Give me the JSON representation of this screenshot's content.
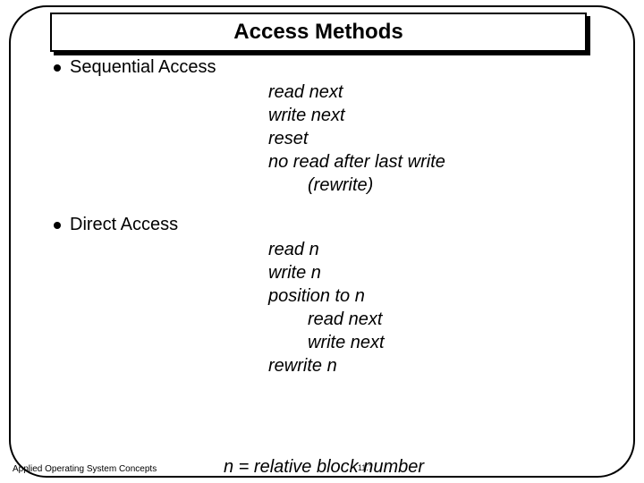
{
  "title": "Access Methods",
  "sections": [
    {
      "label": "Sequential Access",
      "ops": [
        {
          "text": "read next",
          "indent": 0
        },
        {
          "text": "write next",
          "indent": 0
        },
        {
          "text": "reset",
          "indent": 0
        },
        {
          "text": "no read after last write",
          "indent": 0
        },
        {
          "text": "(rewrite)",
          "indent": 1
        }
      ]
    },
    {
      "label": "Direct Access",
      "ops": [
        {
          "text": "read n",
          "indent": 0
        },
        {
          "text": "write n",
          "indent": 0
        },
        {
          "text": "position to n",
          "indent": 0
        },
        {
          "text": "read next",
          "indent": 1
        },
        {
          "text": "write next",
          "indent": 1
        },
        {
          "text": "rewrite n",
          "indent": 0
        }
      ]
    }
  ],
  "footer_equation": "n = relative block number",
  "footer_left": "Applied Operating System Concepts",
  "page_number": "11.7",
  "colors": {
    "background": "#ffffff",
    "text": "#000000",
    "border": "#000000"
  }
}
